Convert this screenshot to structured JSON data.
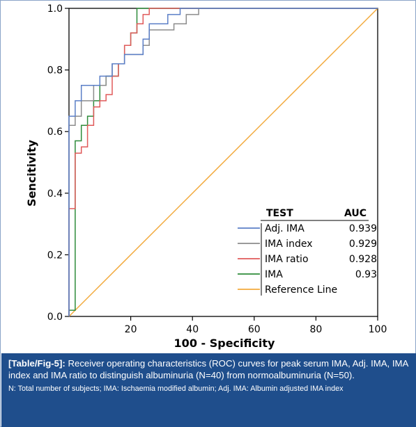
{
  "chart_data": {
    "type": "line",
    "xlabel": "100 - Specificity",
    "ylabel": "Sencitivity",
    "xlim": [
      0,
      100
    ],
    "ylim": [
      0,
      1
    ],
    "x_ticks": [
      "20",
      "40",
      "60",
      "80",
      "100"
    ],
    "y_ticks": [
      "0.0",
      "0.2",
      "0.4",
      "0.6",
      "0.8",
      "1.0"
    ],
    "legend": {
      "position": "bottom-right",
      "header_test": "TEST",
      "header_auc": "AUC"
    },
    "series": [
      {
        "name": "Adj. IMA",
        "auc": "0.939",
        "color": "#5b7fc7",
        "points": [
          [
            0,
            0
          ],
          [
            0,
            0.65
          ],
          [
            2,
            0.65
          ],
          [
            2,
            0.7
          ],
          [
            4,
            0.7
          ],
          [
            4,
            0.75
          ],
          [
            10,
            0.75
          ],
          [
            10,
            0.78
          ],
          [
            14,
            0.78
          ],
          [
            14,
            0.82
          ],
          [
            18,
            0.82
          ],
          [
            18,
            0.85
          ],
          [
            24,
            0.85
          ],
          [
            24,
            0.9
          ],
          [
            26,
            0.9
          ],
          [
            26,
            0.95
          ],
          [
            32,
            0.95
          ],
          [
            32,
            0.98
          ],
          [
            36,
            0.98
          ],
          [
            36,
            1.0
          ],
          [
            100,
            1.0
          ]
        ]
      },
      {
        "name": "IMA index",
        "auc": "0.929",
        "color": "#8c8c8c",
        "points": [
          [
            0,
            0
          ],
          [
            0,
            0.62
          ],
          [
            2,
            0.62
          ],
          [
            2,
            0.65
          ],
          [
            4,
            0.65
          ],
          [
            4,
            0.7
          ],
          [
            8,
            0.7
          ],
          [
            8,
            0.75
          ],
          [
            12,
            0.75
          ],
          [
            12,
            0.78
          ],
          [
            14,
            0.78
          ],
          [
            14,
            0.82
          ],
          [
            18,
            0.82
          ],
          [
            18,
            0.85
          ],
          [
            24,
            0.85
          ],
          [
            24,
            0.88
          ],
          [
            26,
            0.88
          ],
          [
            26,
            0.93
          ],
          [
            34,
            0.93
          ],
          [
            34,
            0.95
          ],
          [
            38,
            0.95
          ],
          [
            38,
            0.98
          ],
          [
            42,
            0.98
          ],
          [
            42,
            1.0
          ],
          [
            100,
            1.0
          ]
        ]
      },
      {
        "name": "IMA ratio",
        "auc": "0.928",
        "color": "#e05a5a",
        "points": [
          [
            0,
            0
          ],
          [
            0,
            0.35
          ],
          [
            2,
            0.35
          ],
          [
            2,
            0.53
          ],
          [
            4,
            0.53
          ],
          [
            4,
            0.55
          ],
          [
            6,
            0.55
          ],
          [
            6,
            0.62
          ],
          [
            8,
            0.62
          ],
          [
            8,
            0.68
          ],
          [
            10,
            0.68
          ],
          [
            10,
            0.7
          ],
          [
            12,
            0.7
          ],
          [
            12,
            0.72
          ],
          [
            14,
            0.72
          ],
          [
            14,
            0.78
          ],
          [
            16,
            0.78
          ],
          [
            16,
            0.82
          ],
          [
            18,
            0.82
          ],
          [
            18,
            0.88
          ],
          [
            20,
            0.88
          ],
          [
            20,
            0.92
          ],
          [
            22,
            0.92
          ],
          [
            22,
            0.95
          ],
          [
            24,
            0.95
          ],
          [
            24,
            0.98
          ],
          [
            26,
            0.98
          ],
          [
            26,
            1.0
          ],
          [
            100,
            1.0
          ]
        ]
      },
      {
        "name": "IMA",
        "auc": "0.93",
        "color": "#2e8b3a",
        "points": [
          [
            0,
            0
          ],
          [
            0,
            0.02
          ],
          [
            2,
            0.02
          ],
          [
            2,
            0.57
          ],
          [
            4,
            0.57
          ],
          [
            4,
            0.62
          ],
          [
            6,
            0.62
          ],
          [
            6,
            0.65
          ],
          [
            8,
            0.65
          ],
          [
            8,
            0.7
          ],
          [
            10,
            0.7
          ],
          [
            10,
            0.75
          ],
          [
            12,
            0.75
          ],
          [
            12,
            0.78
          ],
          [
            16,
            0.78
          ],
          [
            16,
            0.82
          ],
          [
            18,
            0.82
          ],
          [
            18,
            0.88
          ],
          [
            20,
            0.88
          ],
          [
            20,
            0.92
          ],
          [
            22,
            0.92
          ],
          [
            22,
            1.0
          ],
          [
            100,
            1.0
          ]
        ]
      },
      {
        "name": "Reference Line",
        "auc": "",
        "color": "#f2a93b",
        "points": [
          [
            0,
            0
          ],
          [
            100,
            1
          ]
        ]
      }
    ]
  },
  "caption": {
    "label": "[Table/Fig-5]:",
    "text": " Receiver operating characteristics (ROC) curves for peak serum IMA, Adj. IMA, IMA index and IMA ratio to distinguish albuminuria (N=40) from normoalbuminuria (N=50).",
    "note": "N: Total number of subjects; IMA: Ischaemia modified albumin; Adj. IMA: Albumin adjusted IMA index"
  }
}
